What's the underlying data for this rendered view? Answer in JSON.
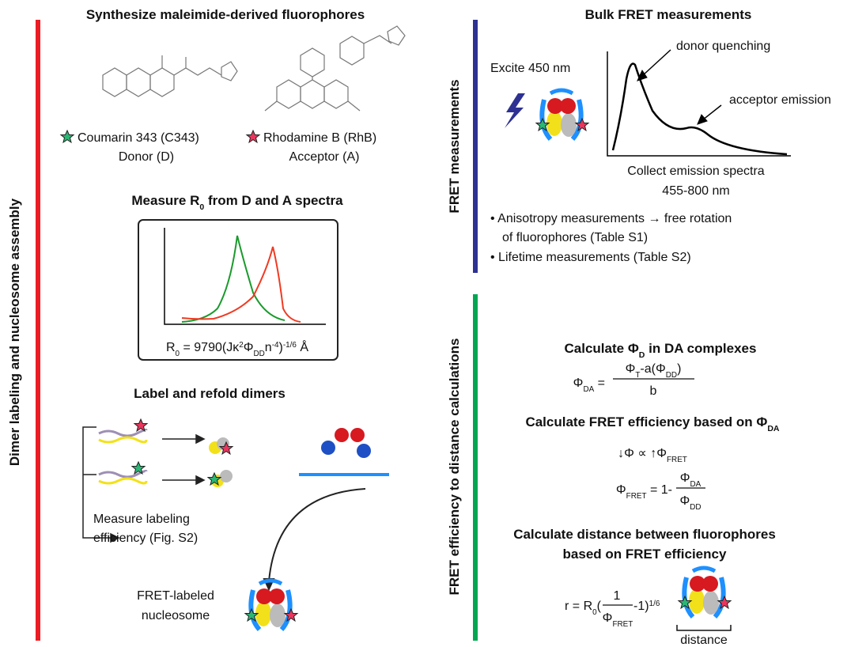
{
  "left_panel": {
    "side_label": "Dimer labeling and nucleosome assembly",
    "synthesize": {
      "title": "Synthesize maleimide-derived fluorophores",
      "donor_name": "Coumarin 343 (C343)",
      "donor_role": "Donor (D)",
      "acceptor_name": "Rhodamine B (RhB)",
      "acceptor_role": "Acceptor (A)"
    },
    "r0": {
      "title": [
        {
          "t": "Measure R"
        },
        {
          "sub": "0"
        },
        {
          "t": " from D and A spectra"
        }
      ],
      "formula": [
        {
          "t": "R"
        },
        {
          "sub": "0"
        },
        {
          "t": " = 9790(Jκ"
        },
        {
          "sup": "2"
        },
        {
          "t": "Φ"
        },
        {
          "sub": "DD"
        },
        {
          "t": "n"
        },
        {
          "sup": "-4"
        },
        {
          "t": ")"
        },
        {
          "sup": "-1/6"
        },
        {
          "t": " Å"
        }
      ]
    },
    "label": {
      "title": "Label and refold dimers",
      "measure_line1": "Measure labeling",
      "measure_line2": "efficiency (Fig. S2)",
      "product_line1": "FRET-labeled",
      "product_line2": "nucleosome"
    }
  },
  "right_panel": {
    "top_side_label": "FRET measurements",
    "bulk": {
      "title": "Bulk FRET measurements",
      "excite": "Excite 450 nm",
      "donor_quenching": "donor quenching",
      "acceptor_emission": "acceptor emission",
      "collect_line1": "Collect emission spectra",
      "collect_line2": "455-800 nm",
      "bullet1_line1": "• Anisotropy measurements → free rotation",
      "bullet1_line2": "of fluorophores (Table S1)",
      "bullet2": "• Lifetime measurements (Table S2)"
    },
    "bottom_side_label": "FRET efficiency to distance calculations",
    "calc_phi": {
      "title": [
        {
          "t": "Calculate Φ"
        },
        {
          "sub": "D"
        },
        {
          "t": " in DA complexes"
        }
      ],
      "lhs": [
        {
          "t": "Φ"
        },
        {
          "sub": "DA"
        },
        {
          "t": " ="
        }
      ],
      "numerator": [
        {
          "t": "Φ"
        },
        {
          "sub": "T"
        },
        {
          "t": "-a(Φ"
        },
        {
          "sub": "DD"
        },
        {
          "t": ")"
        }
      ],
      "denominator": "b"
    },
    "calc_eff": {
      "title": [
        {
          "t": "Calculate FRET efficiency based on Φ"
        },
        {
          "sub": "DA"
        }
      ],
      "proportional": [
        {
          "t": "↓Φ ∝ ↑Φ"
        },
        {
          "sub": "FRET"
        }
      ],
      "lhs": [
        {
          "t": "Φ"
        },
        {
          "sub": "FRET"
        },
        {
          "t": " = 1-"
        }
      ],
      "numerator": [
        {
          "t": "Φ"
        },
        {
          "sub": "DA"
        }
      ],
      "denominator": [
        {
          "t": "Φ"
        },
        {
          "sub": "DD"
        }
      ]
    },
    "calc_dist": {
      "title_line1": "Calculate distance between fluorophores",
      "title_line2": "based on FRET efficiency",
      "lhs": [
        {
          "t": "r = R"
        },
        {
          "sub": "0"
        },
        {
          "t": "("
        }
      ],
      "numerator": "1",
      "denominator": [
        {
          "t": "Φ"
        },
        {
          "sub": "FRET"
        }
      ],
      "rest": [
        {
          "t": "-1)"
        },
        {
          "sup": "1/6"
        }
      ],
      "distance": "distance"
    }
  }
}
